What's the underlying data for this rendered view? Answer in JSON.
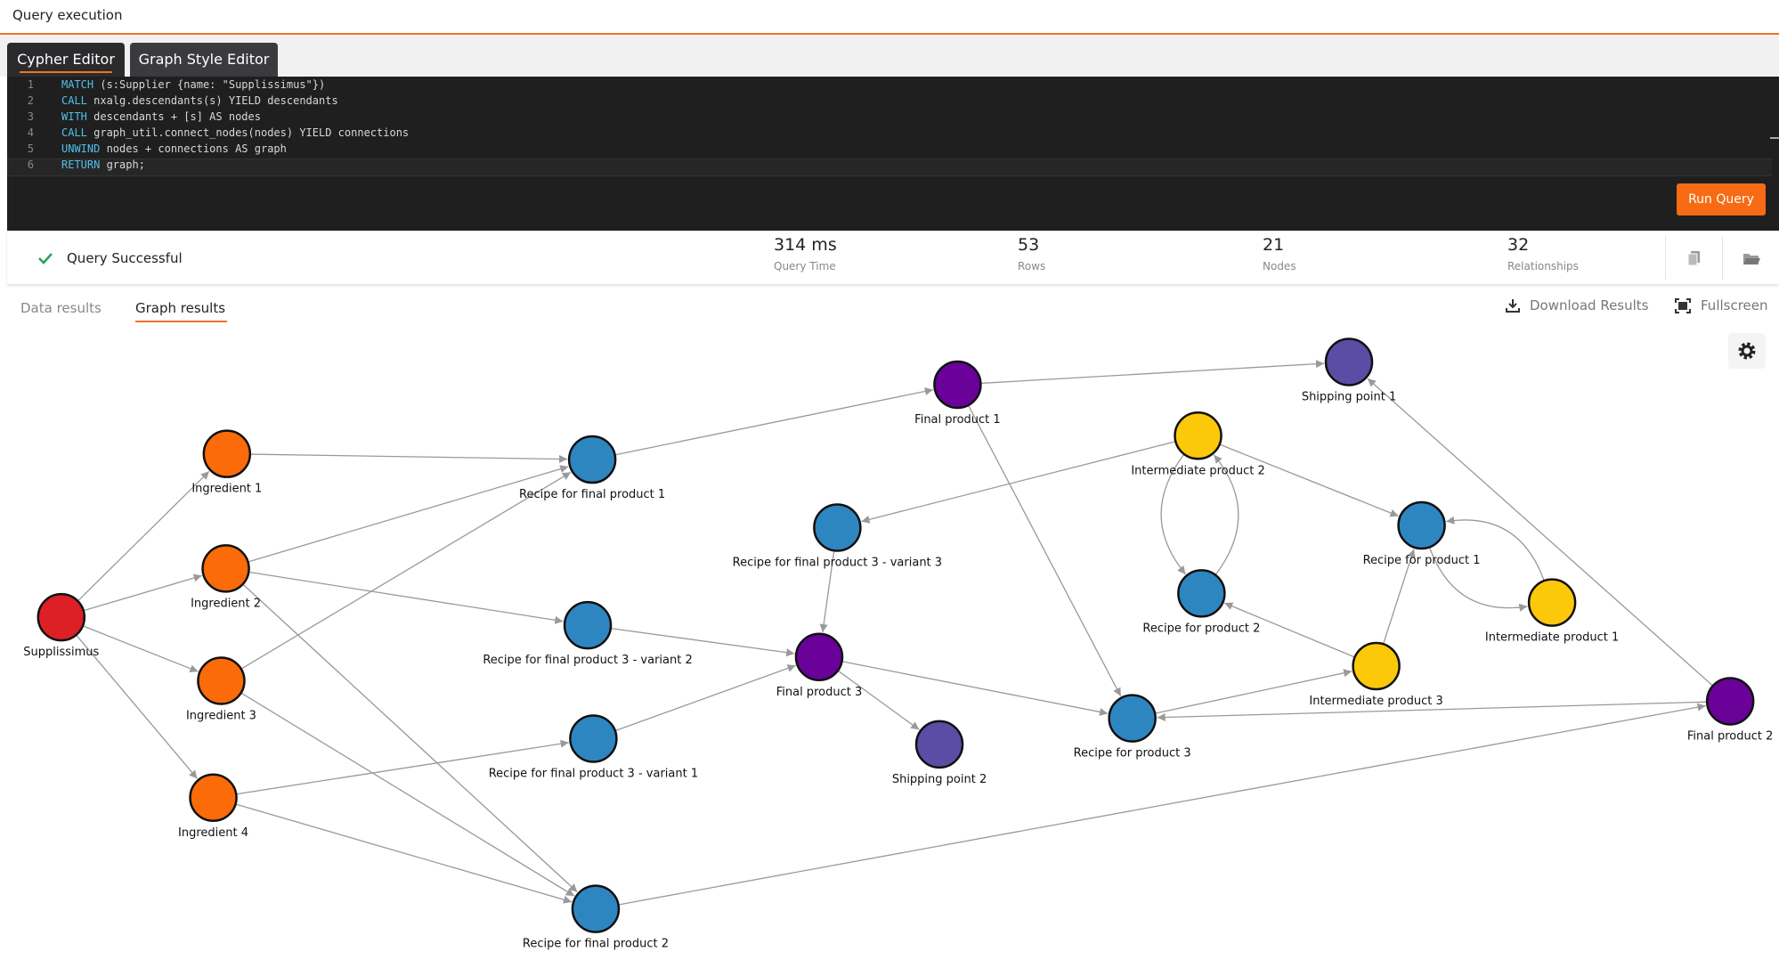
{
  "header": {
    "title": "Query execution"
  },
  "editor_tabs": [
    "Cypher Editor",
    "Graph Style Editor"
  ],
  "editor": {
    "line_numbers": [
      1,
      2,
      3,
      4,
      5,
      6
    ],
    "lines": [
      "MATCH (s:Supplier {name: \"Supplissimus\"})",
      "CALL nxalg.descendants(s) YIELD descendants",
      "WITH descendants + [s] AS nodes",
      "CALL graph_util.connect_nodes(nodes) YIELD connections",
      "UNWIND nodes + connections AS graph",
      "RETURN graph;"
    ]
  },
  "run_button": "Run Query",
  "status": {
    "message": "Query Successful",
    "stats": [
      {
        "value": "314 ms",
        "label": "Query Time"
      },
      {
        "value": 53,
        "label": "Rows"
      },
      {
        "value": 21,
        "label": "Nodes"
      },
      {
        "value": 32,
        "label": "Relationships"
      }
    ]
  },
  "result_tabs": [
    "Data results",
    "Graph results"
  ],
  "actions": [
    "Download Results",
    "Fullscreen"
  ],
  "graph": {
    "nodes": [
      {
        "label": "Supplissimus",
        "color": "#dd1f26"
      },
      {
        "label": "Ingredient 1",
        "color": "#fb6b0a"
      },
      {
        "label": "Ingredient 2",
        "color": "#fb6b0a"
      },
      {
        "label": "Ingredient 3",
        "color": "#fb6b0a"
      },
      {
        "label": "Ingredient 4",
        "color": "#fb6b0a"
      },
      {
        "label": "Recipe for final product 1",
        "color": "#2e86c1"
      },
      {
        "label": "Recipe for final product 3 - variant 2",
        "color": "#2e86c1"
      },
      {
        "label": "Recipe for final product 3 - variant 1",
        "color": "#2e86c1"
      },
      {
        "label": "Recipe for final product 2",
        "color": "#2e86c1"
      },
      {
        "label": "Final product 1",
        "color": "#6a0199"
      },
      {
        "label": "Recipe for final product 3 - variant 3",
        "color": "#2e86c1"
      },
      {
        "label": "Final product 3",
        "color": "#6a0199"
      },
      {
        "label": "Shipping point 2",
        "color": "#5b4ca6"
      },
      {
        "label": "Shipping point 1",
        "color": "#5b4ca6"
      },
      {
        "label": "Intermediate product 2",
        "color": "#fcc80a"
      },
      {
        "label": "Recipe for product 2",
        "color": "#2e86c1"
      },
      {
        "label": "Recipe for product 1",
        "color": "#2e86c1"
      },
      {
        "label": "Intermediate product 1",
        "color": "#fcc80a"
      },
      {
        "label": "Intermediate product 3",
        "color": "#fcc80a"
      },
      {
        "label": "Recipe for product 3",
        "color": "#2e86c1"
      },
      {
        "label": "Final product 2",
        "color": "#6a0199"
      }
    ]
  }
}
